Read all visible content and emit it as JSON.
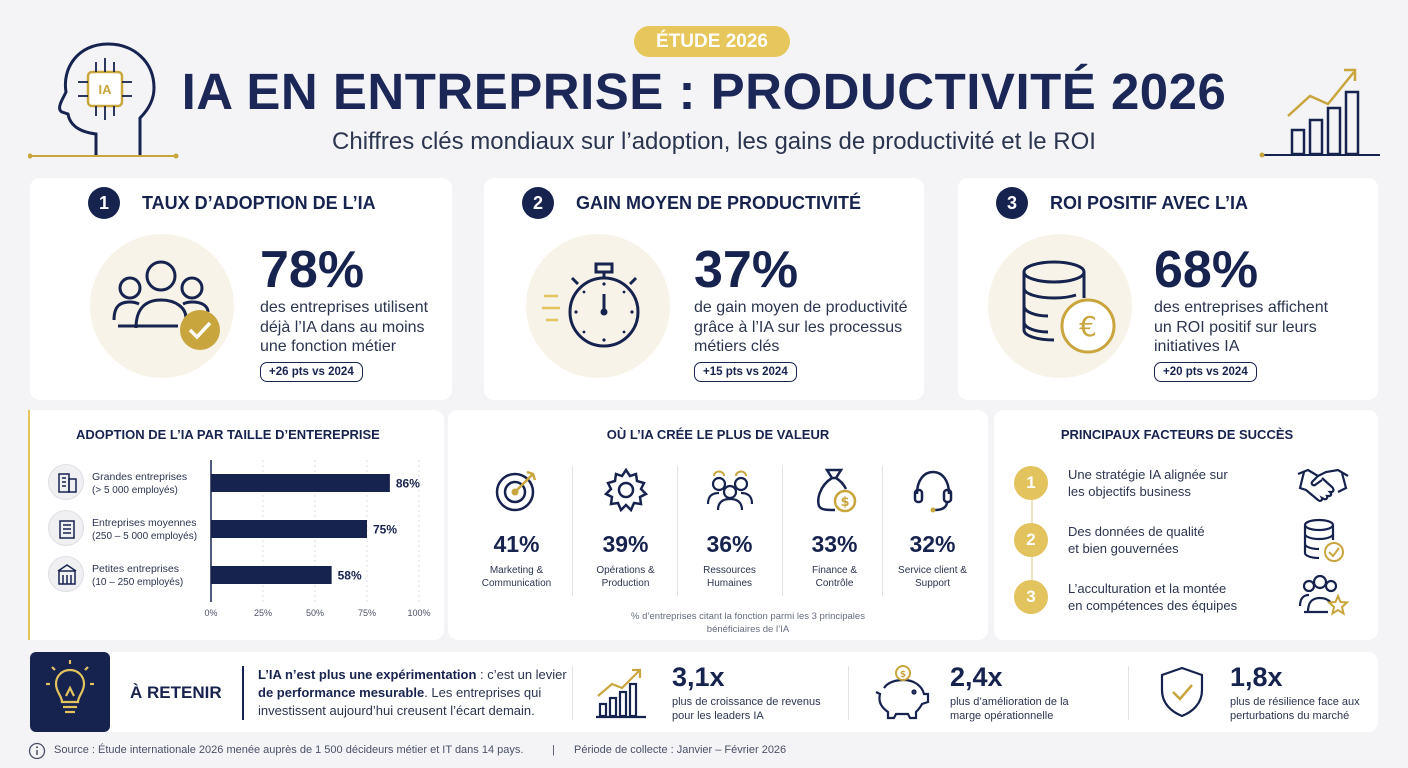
{
  "header": {
    "badge": "ÉTUDE 2026",
    "title": "IA EN ENTREPRISE : PRODUCTIVITÉ 2026",
    "subtitle": "Chiffres clés mondiaux sur l’adoption, les gains de productivité et le ROI",
    "brain_chip_label": "IA"
  },
  "kpis": [
    {
      "num": "1",
      "title": "TAUX D’ADOPTION DE L’IA",
      "value": "78%",
      "desc": "des entreprises utilisent déjà l’IA dans au moins une fonction métier",
      "pill": "+26 pts vs 2024",
      "icon": "users-check-icon"
    },
    {
      "num": "2",
      "title": "GAIN MOYEN DE PRODUCTIVITÉ",
      "value": "37%",
      "desc": "de gain moyen de productivité grâce à l’IA sur les processus métiers clés",
      "pill": "+15 pts vs 2024",
      "icon": "stopwatch-icon"
    },
    {
      "num": "3",
      "title": "ROI POSITIF AVEC L’IA",
      "value": "68%",
      "desc": "des entreprises affichent un ROI positif sur leurs initiatives IA",
      "pill": "+20 pts vs 2024",
      "icon": "coins-euro-icon"
    }
  ],
  "adoption_section": {
    "title": "ADOPTION DE L’IA PAR TAILLE D’ENTEREPRISE"
  },
  "chart_data": {
    "type": "bar",
    "orientation": "horizontal",
    "title": "ADOPTION DE L’IA PAR TAILLE D’ENTEREPRISE",
    "categories": [
      {
        "name": "Grandes entreprises",
        "sub": "(> 5 000 employés)"
      },
      {
        "name": "Entreprises moyennes",
        "sub": "(250 – 5 000 employés)"
      },
      {
        "name": "Petites entreprises",
        "sub": "(10 – 250 employés)"
      }
    ],
    "values": [
      86,
      75,
      58
    ],
    "value_labels": [
      "86%",
      "75%",
      "58%"
    ],
    "xlim": [
      0,
      100
    ],
    "xticks": [
      "0%",
      "25%",
      "50%",
      "75%",
      "100%"
    ],
    "bar_color": "#17234f",
    "grid": true
  },
  "value_section": {
    "title": "OÙ L’IA CRÉE LE PLUS DE VALEUR",
    "items": [
      {
        "value": "41%",
        "label1": "Marketing &",
        "label2": "Communication",
        "icon": "target-icon"
      },
      {
        "value": "39%",
        "label1": "Opérations &",
        "label2": "Production",
        "icon": "gear-icon"
      },
      {
        "value": "36%",
        "label1": "Ressources",
        "label2": "Humaines",
        "icon": "team-icon"
      },
      {
        "value": "33%",
        "label1": "Finance &",
        "label2": "Contrôle",
        "icon": "money-bag-icon"
      },
      {
        "value": "32%",
        "label1": "Service client &",
        "label2": "Support",
        "icon": "headset-icon"
      }
    ],
    "note1": "% d’entreprises citant la fonction parmi les 3 principales",
    "note2": "bénéficiaires de l’IA"
  },
  "success_section": {
    "title": "PRINCIPAUX FACTEURS DE SUCCÈS",
    "items": [
      {
        "num": "1",
        "line1": "Une stratégie IA alignée sur",
        "line2": "les objectifs business",
        "icon": "handshake-icon"
      },
      {
        "num": "2",
        "line1": "Des données de qualité",
        "line2": "et bien gouvernées",
        "icon": "database-check-icon"
      },
      {
        "num": "3",
        "line1": "L’acculturation et la montée",
        "line2": "en compétences des équipes",
        "icon": "team-star-icon"
      }
    ]
  },
  "retain": {
    "title": "À RETENIR",
    "bold1": "L’IA n’est plus une expérimentation",
    "text1": " : c’est un levier ",
    "bold2": "de performance mesurable",
    "text2": ". Les entreprises qui investissent aujourd’hui creusent l’écart demain.",
    "stats": [
      {
        "value": "3,1x",
        "line1": "plus de croissance de revenus",
        "line2": "pour les leaders IA",
        "icon": "growth-chart-icon"
      },
      {
        "value": "2,4x",
        "line1": "plus d’amélioration de la",
        "line2": "marge opérationnelle",
        "icon": "piggy-bank-icon"
      },
      {
        "value": "1,8x",
        "line1": "plus de résilience face aux",
        "line2": "perturbations du marché",
        "icon": "shield-check-icon"
      }
    ]
  },
  "footer": {
    "source": "Source : Étude internationale 2026 menée auprès de 1 500 décideurs métier et IT dans 14 pays.",
    "separator": "|",
    "period": "Période de collecte : Janvier – Février 2026"
  },
  "colors": {
    "navy": "#17234f",
    "gold": "#e2c35e",
    "background": "#f4f4f7"
  }
}
